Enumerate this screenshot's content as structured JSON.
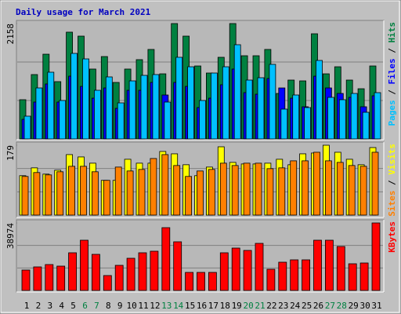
{
  "title": "Daily usage for March 2021",
  "separator": " / ",
  "chart_data": [
    {
      "type": "bar",
      "ylim": [
        0,
        2158
      ],
      "yticks": [
        2158
      ],
      "series": [
        {
          "name": "Hits",
          "color": "#008040",
          "values": [
            734,
            1204,
            1585,
            1072,
            1997,
            1923,
            1307,
            1541,
            1057,
            1307,
            1483,
            1674,
            1218,
            2158,
            1923,
            1365,
            1233,
            1527,
            2158,
            1556,
            1556,
            1674,
            851,
            1101,
            1086,
            1967,
            1218,
            1350,
            1101,
            939,
            1365
          ]
        },
        {
          "name": "Files",
          "color": "#0000ff",
          "values": [
            367,
            690,
            1028,
            690,
            1174,
            983,
            763,
            954,
            572,
            910,
            910,
            1057,
            822,
            1057,
            983,
            587,
            763,
            1013,
            1307,
            866,
            837,
            1130,
            954,
            763,
            602,
            1174,
            954,
            851,
            778,
            602,
            807
          ]
        },
        {
          "name": "Pages",
          "color": "#00c0ff",
          "values": [
            426,
            954,
            1248,
            719,
            1600,
            1497,
            910,
            1160,
            675,
            1086,
            1189,
            1204,
            690,
            1527,
            1350,
            719,
            1233,
            1350,
            1762,
            1101,
            1145,
            1395,
            558,
            822,
            587,
            1468,
            778,
            734,
            851,
            499,
            866
          ]
        }
      ]
    },
    {
      "type": "bar",
      "ylim": [
        0,
        179
      ],
      "yticks": [
        179
      ],
      "series": [
        {
          "name": "Visits",
          "color": "#ffff00",
          "values": [
            101,
            121,
            105,
            115,
            155,
            149,
            133,
            89,
            89,
            143,
            133,
            133,
            163,
            157,
            129,
            101,
            123,
            175,
            135,
            131,
            131,
            133,
            143,
            129,
            157,
            159,
            179,
            161,
            143,
            129,
            173
          ]
        },
        {
          "name": "Sites",
          "color": "#ff8000",
          "values": [
            99,
            109,
            103,
            111,
            125,
            125,
            111,
            89,
            123,
            113,
            117,
            145,
            155,
            127,
            99,
            113,
            117,
            133,
            127,
            133,
            133,
            119,
            121,
            139,
            139,
            161,
            139,
            135,
            127,
            125,
            161
          ]
        }
      ]
    },
    {
      "type": "bar",
      "ylim": [
        0,
        38974
      ],
      "yticks": [
        38974
      ],
      "categories": [
        "1",
        "2",
        "3",
        "4",
        "5",
        "6",
        "7",
        "8",
        "9",
        "10",
        "11",
        "12",
        "13",
        "14",
        "15",
        "16",
        "17",
        "18",
        "19",
        "20",
        "21",
        "22",
        "23",
        "24",
        "25",
        "26",
        "27",
        "28",
        "29",
        "30",
        "31"
      ],
      "category_colors": [
        "#000000",
        "#000000",
        "#000000",
        "#000000",
        "#000000",
        "#008040",
        "#008040",
        "#000000",
        "#000000",
        "#000000",
        "#000000",
        "#000000",
        "#008040",
        "#008040",
        "#000000",
        "#000000",
        "#000000",
        "#000000",
        "#000000",
        "#008040",
        "#008040",
        "#000000",
        "#000000",
        "#000000",
        "#000000",
        "#000000",
        "#008040",
        "#008040",
        "#000000",
        "#000000",
        "#000000"
      ],
      "series": [
        {
          "name": "KBytes",
          "color": "#ff0000",
          "values": [
            11783,
            13596,
            14955,
            14049,
            21753,
            29004,
            20847,
            8611,
            14502,
            18581,
            21753,
            22660,
            36255,
            28098,
            10423,
            10423,
            10423,
            21753,
            24472,
            23113,
            27191,
            12236,
            16315,
            17674,
            17674,
            29004,
            29004,
            25378,
            15408,
            15862,
            38974
          ]
        }
      ]
    }
  ]
}
